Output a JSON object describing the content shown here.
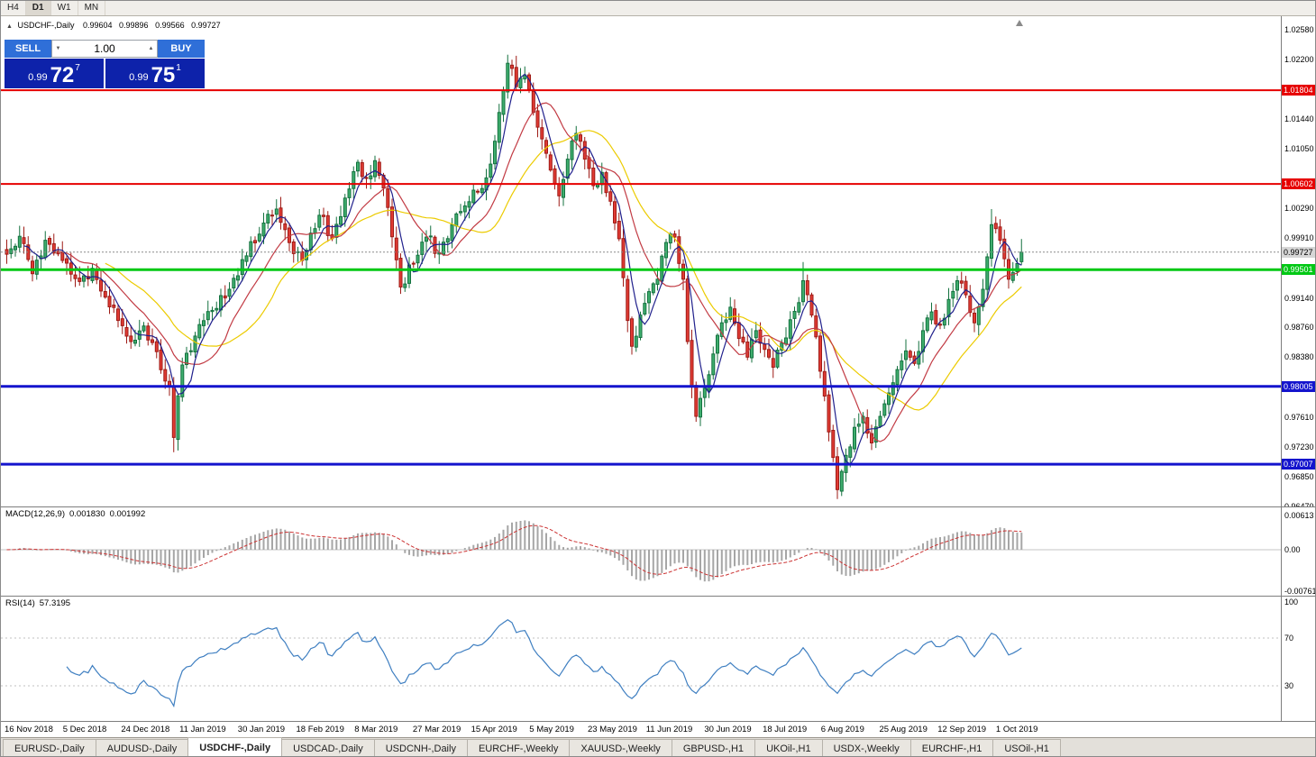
{
  "toolbar": {
    "timeframes": [
      {
        "label": "H4",
        "active": false
      },
      {
        "label": "D1",
        "active": true
      },
      {
        "label": "W1",
        "active": false
      },
      {
        "label": "MN",
        "active": false
      }
    ]
  },
  "icons": {
    "collapse": "▲",
    "volume_down": "▼",
    "volume_up": "▲"
  },
  "chart": {
    "header": {
      "title": "USDCHF-,Daily",
      "open": "0.99604",
      "high": "0.99896",
      "low": "0.99566",
      "close": "0.99727"
    },
    "trade_panel": {
      "sell_label": "SELL",
      "buy_label": "BUY",
      "volume": "1.00",
      "sell_price": {
        "prefix": "0.99",
        "big": "72",
        "pip": "7"
      },
      "buy_price": {
        "prefix": "0.99",
        "big": "75",
        "pip": "1"
      }
    }
  },
  "macd": {
    "label": "MACD(12,26,9)",
    "value_main": "0.001830",
    "value_signal": "0.001992",
    "scale": [
      {
        "label": "0.00613",
        "value": 0.00613
      },
      {
        "label": "0.00",
        "value": 0
      },
      {
        "label": "-0.00761",
        "value": -0.00761
      }
    ]
  },
  "rsi": {
    "label": "RSI(14)",
    "value": "57.3195",
    "scale": [
      {
        "label": "100",
        "value": 100
      },
      {
        "label": "70",
        "value": 70
      },
      {
        "label": "30",
        "value": 30
      }
    ]
  },
  "date_axis": {
    "labels": [
      "16 Nov 2018",
      "5 Dec 2018",
      "24 Dec 2018",
      "11 Jan 2019",
      "30 Jan 2019",
      "18 Feb 2019",
      "8 Mar 2019",
      "27 Mar 2019",
      "15 Apr 2019",
      "5 May 2019",
      "23 May 2019",
      "11 Jun 2019",
      "30 Jun 2019",
      "18 Jul 2019",
      "6 Aug 2019",
      "25 Aug 2019",
      "12 Sep 2019",
      "1 Oct 2019"
    ]
  },
  "tabs": [
    {
      "label": "EURUSD-,Daily",
      "active": false
    },
    {
      "label": "AUDUSD-,Daily",
      "active": false
    },
    {
      "label": "USDCHF-,Daily",
      "active": true
    },
    {
      "label": "USDCAD-,Daily",
      "active": false
    },
    {
      "label": "USDCNH-,Daily",
      "active": false
    },
    {
      "label": "EURCHF-,Weekly",
      "active": false
    },
    {
      "label": "XAUUSD-,Weekly",
      "active": false
    },
    {
      "label": "GBPUSD-,H1",
      "active": false
    },
    {
      "label": "UKOil-,H1",
      "active": false
    },
    {
      "label": "USDX-,Weekly",
      "active": false
    },
    {
      "label": "EURCHF-,H1",
      "active": false
    },
    {
      "label": "USOil-,H1",
      "active": false
    }
  ],
  "chart_data": {
    "type": "candlestick",
    "symbol": "USDCHF",
    "timeframe": "Daily",
    "visible_range": {
      "price_min": 0.9647,
      "price_max": 1.0258
    },
    "candle_count": 238,
    "close_anchors": [
      [
        0,
        0.997
      ],
      [
        3,
        0.9993
      ],
      [
        6,
        0.9945
      ],
      [
        9,
        0.9988
      ],
      [
        13,
        0.9962
      ],
      [
        17,
        0.9935
      ],
      [
        20,
        0.9952
      ],
      [
        23,
        0.9915
      ],
      [
        26,
        0.9885
      ],
      [
        29,
        0.9858
      ],
      [
        32,
        0.9878
      ],
      [
        35,
        0.9845
      ],
      [
        38,
        0.98
      ],
      [
        39,
        0.9735
      ],
      [
        41,
        0.9828
      ],
      [
        44,
        0.9865
      ],
      [
        48,
        0.9898
      ],
      [
        52,
        0.9925
      ],
      [
        56,
        0.9968
      ],
      [
        60,
        1.001
      ],
      [
        63,
        1.0028
      ],
      [
        66,
        0.9985
      ],
      [
        69,
        0.9962
      ],
      [
        73,
        1.002
      ],
      [
        76,
        0.999
      ],
      [
        79,
        1.0042
      ],
      [
        82,
        1.0088
      ],
      [
        84,
        1.0068
      ],
      [
        86,
        1.009
      ],
      [
        89,
        1.003
      ],
      [
        92,
        0.9928
      ],
      [
        95,
        0.9958
      ],
      [
        98,
        0.9992
      ],
      [
        101,
        0.9972
      ],
      [
        104,
        1.0008
      ],
      [
        107,
        1.0032
      ],
      [
        110,
        1.005
      ],
      [
        112,
        1.0068
      ],
      [
        114,
        1.0115
      ],
      [
        116,
        1.018
      ],
      [
        117,
        1.0215
      ],
      [
        119,
        1.0185
      ],
      [
        121,
        1.02
      ],
      [
        123,
        1.0152
      ],
      [
        125,
        1.0118
      ],
      [
        127,
        1.0078
      ],
      [
        129,
        1.0045
      ],
      [
        131,
        1.0092
      ],
      [
        133,
        1.0125
      ],
      [
        135,
        1.0092
      ],
      [
        137,
        1.0058
      ],
      [
        139,
        1.0075
      ],
      [
        141,
        1.0038
      ],
      [
        143,
        0.999
      ],
      [
        144,
        0.994
      ],
      [
        145,
        0.9885
      ],
      [
        146,
        0.9852
      ],
      [
        148,
        0.9892
      ],
      [
        150,
        0.9922
      ],
      [
        152,
        0.9938
      ],
      [
        154,
        0.9985
      ],
      [
        156,
        0.9992
      ],
      [
        158,
        0.9938
      ],
      [
        159,
        0.9858
      ],
      [
        160,
        0.98
      ],
      [
        161,
        0.9762
      ],
      [
        163,
        0.9798
      ],
      [
        165,
        0.9842
      ],
      [
        167,
        0.9882
      ],
      [
        169,
        0.9902
      ],
      [
        171,
        0.9862
      ],
      [
        173,
        0.9838
      ],
      [
        175,
        0.9872
      ],
      [
        177,
        0.9848
      ],
      [
        179,
        0.9825
      ],
      [
        181,
        0.9856
      ],
      [
        183,
        0.9886
      ],
      [
        185,
        0.9908
      ],
      [
        186,
        0.9936
      ],
      [
        188,
        0.9892
      ],
      [
        190,
        0.982
      ],
      [
        192,
        0.9742
      ],
      [
        194,
        0.9668
      ],
      [
        196,
        0.9712
      ],
      [
        198,
        0.9748
      ],
      [
        200,
        0.9762
      ],
      [
        202,
        0.9728
      ],
      [
        204,
        0.9762
      ],
      [
        206,
        0.9792
      ],
      [
        208,
        0.9822
      ],
      [
        210,
        0.9846
      ],
      [
        212,
        0.983
      ],
      [
        214,
        0.9872
      ],
      [
        216,
        0.9896
      ],
      [
        218,
        0.988
      ],
      [
        220,
        0.9912
      ],
      [
        222,
        0.9936
      ],
      [
        224,
        0.9918
      ],
      [
        226,
        0.9882
      ],
      [
        228,
        0.9925
      ],
      [
        230,
        1.0008
      ],
      [
        232,
        0.9988
      ],
      [
        234,
        0.9938
      ],
      [
        236,
        0.9958
      ],
      [
        237,
        0.99727
      ]
    ],
    "overrides": {
      "39": {
        "low": 0.9716
      },
      "117": {
        "high": 1.0226
      },
      "161": {
        "low": 0.9755
      },
      "186": {
        "high": 0.996
      },
      "194": {
        "low": 0.9656
      },
      "230": {
        "high": 1.0028
      },
      "234": {
        "low": 0.9926
      },
      "237": {
        "open": 0.99604,
        "high": 0.99896,
        "low": 0.99566,
        "close": 0.99727
      }
    },
    "colors": {
      "bull": {
        "fill": "#3fae6e",
        "border": "#14713f"
      },
      "bear": {
        "fill": "#e13b34",
        "border": "#9e1b16"
      },
      "background": "#ffffff"
    },
    "moving_averages": [
      {
        "period": 24,
        "color": "#eccb00"
      },
      {
        "period": 13,
        "color": "#c23b44"
      },
      {
        "period": 5,
        "color": "#20208c"
      }
    ],
    "levels": [
      {
        "label": "1.01804",
        "value": 1.01804,
        "color": "#e60000",
        "thickness": 2
      },
      {
        "label": "1.00602",
        "value": 1.00602,
        "color": "#e60000",
        "thickness": 2
      },
      {
        "label": "0.99501",
        "value": 0.99501,
        "color": "#00c814",
        "thickness": 3
      },
      {
        "label": "0.98005",
        "value": 0.98005,
        "color": "#1414cd",
        "thickness": 3
      },
      {
        "label": "0.97007",
        "value": 0.97007,
        "color": "#1414cd",
        "thickness": 3
      }
    ],
    "current_price": {
      "label": "0.99727",
      "value": 0.99727
    },
    "price_axis_ticks": [
      {
        "label": "1.02580",
        "value": 1.0258
      },
      {
        "label": "1.02200",
        "value": 1.022
      },
      {
        "label": "1.01440",
        "value": 1.0144
      },
      {
        "label": "1.01050",
        "value": 1.0105
      },
      {
        "label": "1.00290",
        "value": 1.0029
      },
      {
        "label": "0.99910",
        "value": 0.9991
      },
      {
        "label": "0.99140",
        "value": 0.9914
      },
      {
        "label": "0.98760",
        "value": 0.9876
      },
      {
        "label": "0.98380",
        "value": 0.9838
      },
      {
        "label": "0.97610",
        "value": 0.9761
      },
      {
        "label": "0.97230",
        "value": 0.9723
      },
      {
        "label": "0.96850",
        "value": 0.9685
      },
      {
        "label": "0.96470",
        "value": 0.9647
      }
    ],
    "macd": {
      "fast": 12,
      "slow": 26,
      "signal": 9,
      "scale_max": 0.00613,
      "scale_min": -0.00761
    },
    "rsi": {
      "period": 14,
      "value": 57.3195,
      "levels": [
        70,
        30
      ]
    }
  }
}
